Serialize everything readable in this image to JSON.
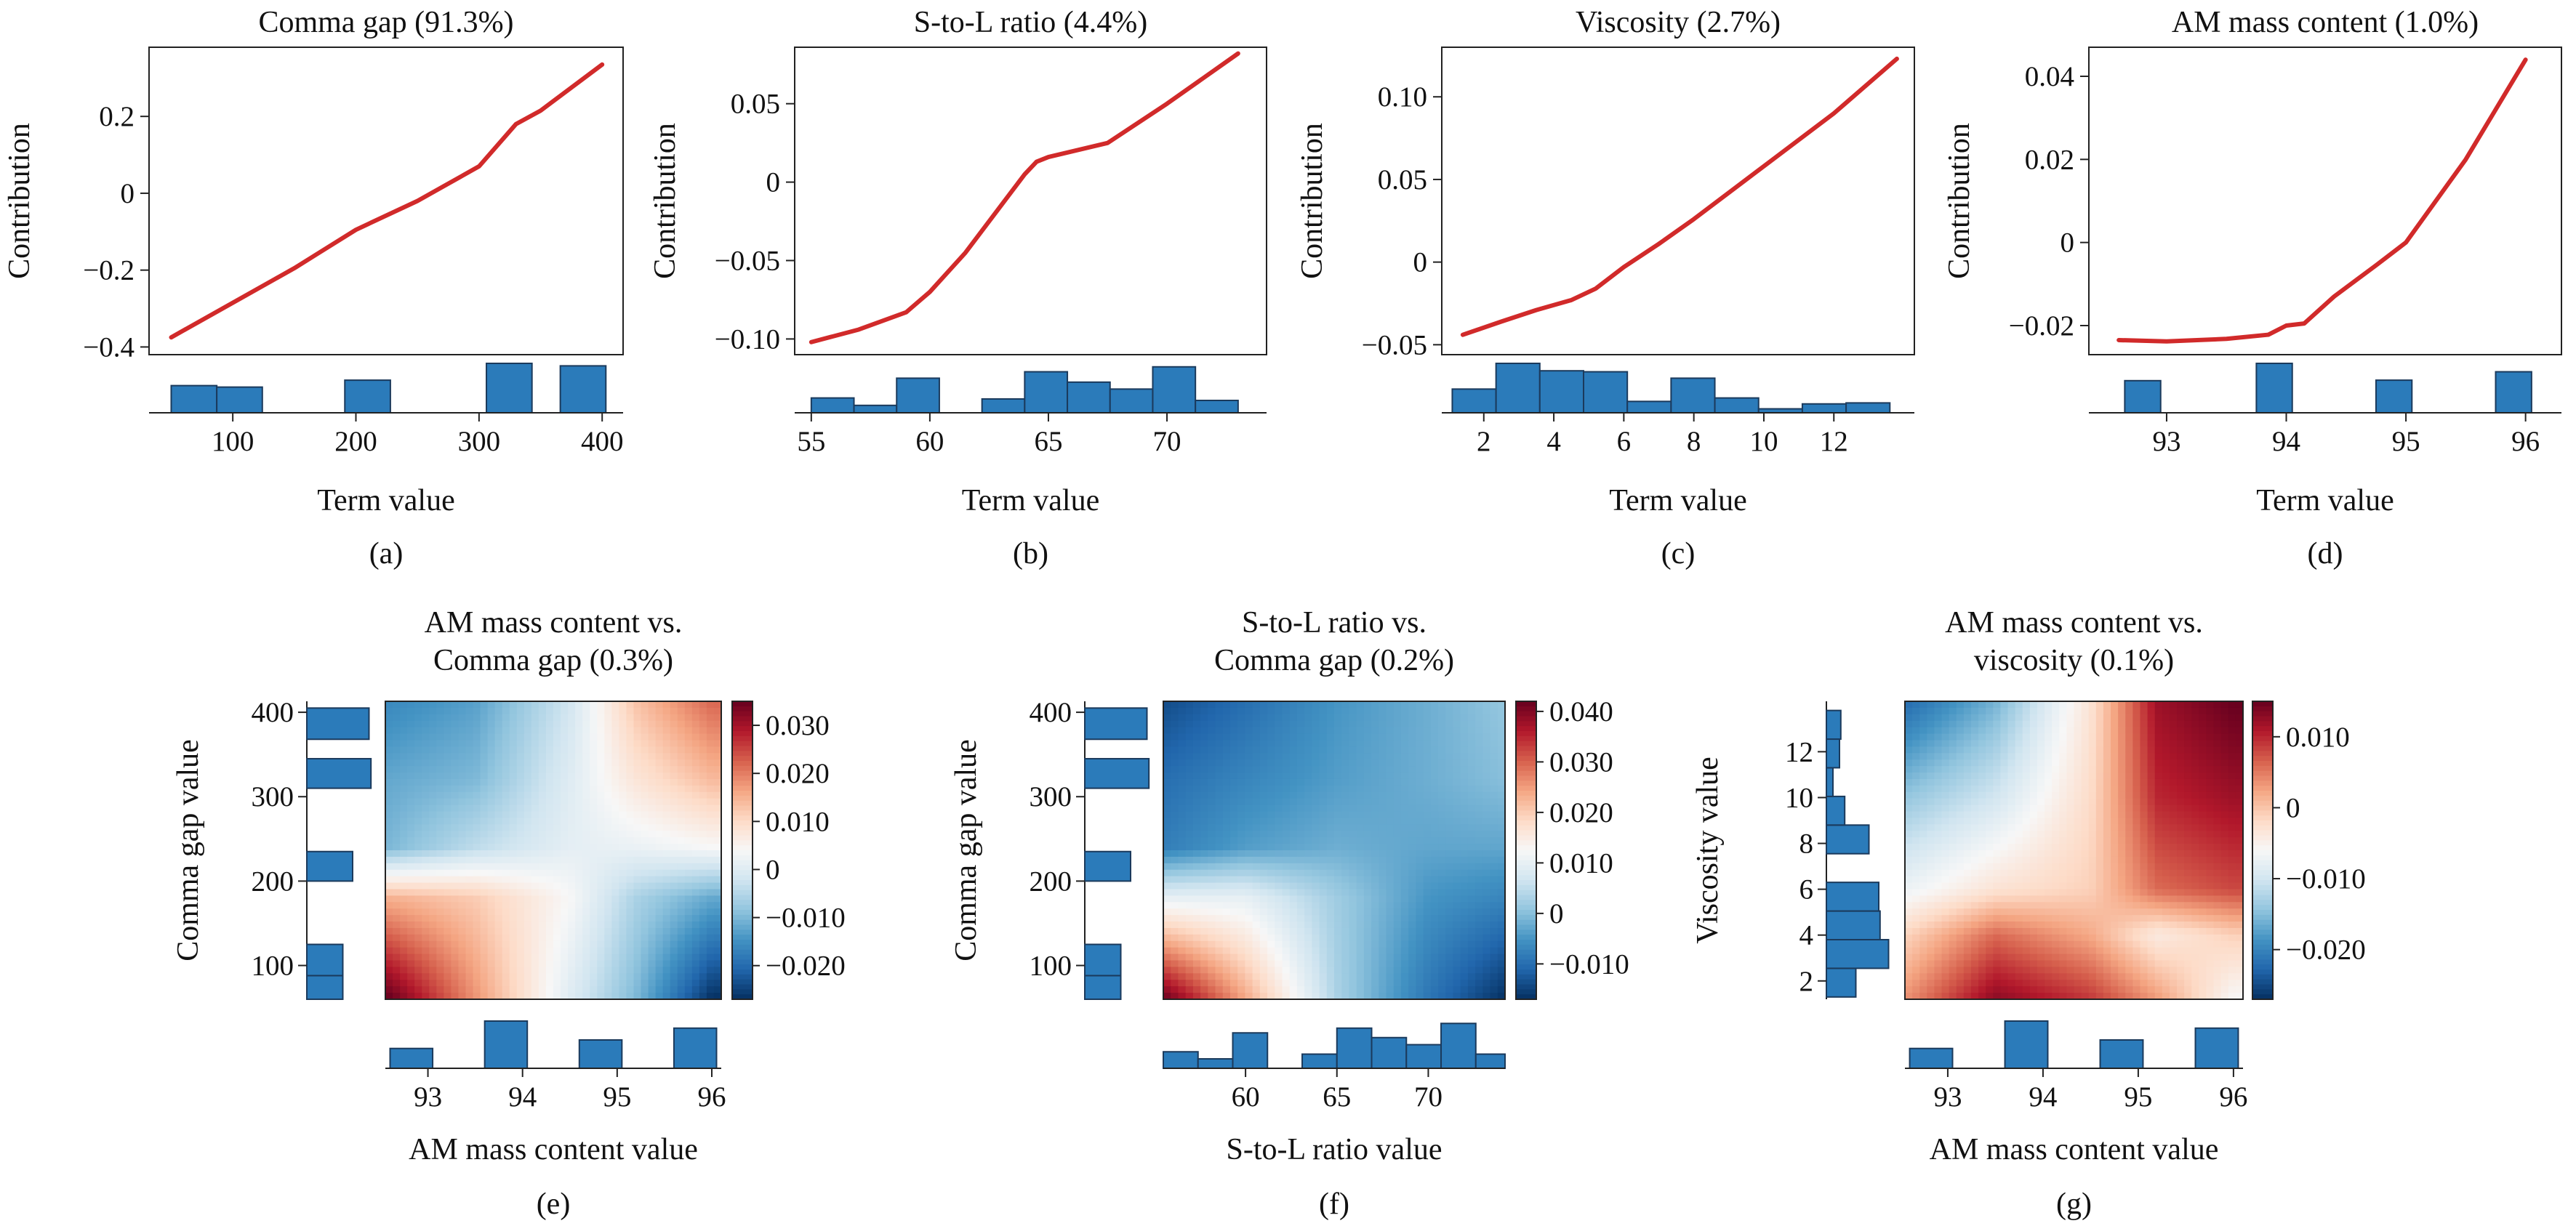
{
  "colors": {
    "line": "#d12a2a",
    "hist_fill": "#2b7bba",
    "hist_edge": "#1b3a5c",
    "axis": "#222222"
  },
  "colormap": "RdBu_r",
  "chart_data": [
    {
      "id": "a",
      "type": "line",
      "title": "Comma gap (91.3%)",
      "xlabel": "Term value",
      "ylabel": "Contribution",
      "caption": "(a)",
      "xlim": [
        32,
        417
      ],
      "ylim": [
        -0.42,
        0.38
      ],
      "xticks": [
        100,
        200,
        300,
        400
      ],
      "xtick_labels": [
        "100",
        "200",
        "300",
        "400"
      ],
      "yticks": [
        0.2,
        0,
        -0.2,
        -0.4
      ],
      "ytick_labels": [
        "0.2",
        "0",
        "−0.2",
        "−0.4"
      ],
      "x": [
        50,
        100,
        150,
        170,
        200,
        250,
        300,
        330,
        350,
        400
      ],
      "y": [
        -0.375,
        -0.285,
        -0.195,
        -0.155,
        -0.095,
        -0.02,
        0.07,
        0.18,
        0.215,
        0.335
      ],
      "hist": {
        "bins": [
          [
            50,
            87,
            0.55
          ],
          [
            87,
            124,
            0.52
          ],
          [
            191,
            228,
            0.66
          ],
          [
            306,
            343,
            1.0
          ],
          [
            366,
            403,
            0.95
          ]
        ]
      }
    },
    {
      "id": "b",
      "type": "line",
      "title": "S-to-L ratio (4.4%)",
      "xlabel": "Term value",
      "ylabel": "Contribution",
      "caption": "(b)",
      "xlim": [
        54.3,
        74.2
      ],
      "ylim": [
        -0.11,
        0.086
      ],
      "xticks": [
        55,
        60,
        65,
        70
      ],
      "xtick_labels": [
        "55",
        "60",
        "65",
        "70"
      ],
      "yticks": [
        0.05,
        0,
        -0.05,
        -0.1
      ],
      "ytick_labels": [
        "0.05",
        "0",
        "−0.05",
        "−0.10"
      ],
      "x": [
        55,
        57,
        59,
        60,
        61.5,
        63,
        64,
        64.5,
        65,
        67.5,
        70,
        73
      ],
      "y": [
        -0.102,
        -0.094,
        -0.083,
        -0.07,
        -0.045,
        -0.015,
        0.005,
        0.013,
        0.016,
        0.025,
        0.05,
        0.082
      ],
      "hist": {
        "bins": [
          [
            55,
            56.8,
            0.3
          ],
          [
            56.8,
            58.6,
            0.15
          ],
          [
            58.6,
            60.4,
            0.7
          ],
          [
            60.4,
            62.2,
            0
          ],
          [
            62.2,
            64,
            0.28
          ],
          [
            64,
            65.8,
            0.83
          ],
          [
            65.8,
            67.6,
            0.62
          ],
          [
            67.6,
            69.4,
            0.48
          ],
          [
            69.4,
            71.2,
            0.93
          ],
          [
            71.2,
            73,
            0.25
          ]
        ]
      }
    },
    {
      "id": "c",
      "type": "line",
      "title": "Viscosity (2.7%)",
      "xlabel": "Term value",
      "ylabel": "Contribution",
      "caption": "(c)",
      "xlim": [
        0.8,
        14.3
      ],
      "ylim": [
        -0.056,
        0.13
      ],
      "xticks": [
        2,
        4,
        6,
        8,
        10,
        12
      ],
      "xtick_labels": [
        "2",
        "4",
        "6",
        "8",
        "10",
        "12"
      ],
      "yticks": [
        0.1,
        0.05,
        0,
        -0.05
      ],
      "ytick_labels": [
        "0.10",
        "0.05",
        "0",
        "−0.05"
      ],
      "x": [
        1.4,
        2.5,
        3.5,
        4.5,
        5.2,
        6,
        7,
        8,
        10,
        12,
        13.8
      ],
      "y": [
        -0.044,
        -0.036,
        -0.029,
        -0.023,
        -0.016,
        -0.003,
        0.011,
        0.026,
        0.058,
        0.09,
        0.123
      ],
      "hist": {
        "bins": [
          [
            1.1,
            2.35,
            0.48
          ],
          [
            2.35,
            3.6,
            1.0
          ],
          [
            3.6,
            4.85,
            0.85
          ],
          [
            4.85,
            6.1,
            0.83
          ],
          [
            6.1,
            7.35,
            0.23
          ],
          [
            7.35,
            8.6,
            0.7
          ],
          [
            8.6,
            9.85,
            0.3
          ],
          [
            9.85,
            11.1,
            0.08
          ],
          [
            11.1,
            12.35,
            0.18
          ],
          [
            12.35,
            13.6,
            0.2
          ]
        ]
      }
    },
    {
      "id": "d",
      "type": "line",
      "title": "AM mass content (1.0%)",
      "xlabel": "Term value",
      "ylabel": "Contribution",
      "caption": "(d)",
      "xlim": [
        92.35,
        96.3
      ],
      "ylim": [
        -0.027,
        0.047
      ],
      "xticks": [
        93,
        94,
        95,
        96
      ],
      "xtick_labels": [
        "93",
        "94",
        "95",
        "96"
      ],
      "yticks": [
        0.04,
        0.02,
        0,
        -0.02
      ],
      "ytick_labels": [
        "0.04",
        "0.02",
        "0",
        "−0.02"
      ],
      "x": [
        92.6,
        93,
        93.5,
        93.85,
        94,
        94.15,
        94.4,
        94.75,
        95,
        95.5,
        96
      ],
      "y": [
        -0.0235,
        -0.0238,
        -0.0232,
        -0.0222,
        -0.02,
        -0.0195,
        -0.013,
        -0.0055,
        0,
        0.02,
        0.044
      ],
      "hist": {
        "bins": [
          [
            92.65,
            92.95,
            0.65
          ],
          [
            93.75,
            94.05,
            1.0
          ],
          [
            94.75,
            95.05,
            0.66
          ],
          [
            95.75,
            96.05,
            0.83
          ]
        ]
      }
    },
    {
      "id": "e",
      "type": "heatmap",
      "title": "AM mass content vs.\nComma gap (0.3%)",
      "xlabel": "AM mass content value",
      "ylabel": "Comma gap value",
      "caption": "(e)",
      "xlim": [
        92.55,
        96.1
      ],
      "ylim": [
        60,
        413
      ],
      "xticks": [
        93,
        94,
        95,
        96
      ],
      "xtick_labels": [
        "93",
        "94",
        "95",
        "96"
      ],
      "yticks": [
        100,
        200,
        300,
        400
      ],
      "ytick_labels": [
        "100",
        "200",
        "300",
        "400"
      ],
      "colorbar": {
        "min": -0.027,
        "max": 0.035,
        "ticks": [
          0.03,
          0.02,
          0.01,
          0,
          -0.01,
          -0.02
        ],
        "labels": [
          "0.030",
          "0.020",
          "0.010",
          "0",
          "−0.010",
          "−0.020"
        ]
      },
      "grid_x": [
        92.6,
        93.5,
        94.5,
        95.2,
        96
      ],
      "grid_y": [
        60,
        180,
        240,
        320,
        413
      ],
      "z": [
        [
          0.035,
          0.018,
          0.0,
          -0.01,
          -0.027
        ],
        [
          0.015,
          0.012,
          0.004,
          -0.006,
          -0.012
        ],
        [
          -0.01,
          -0.004,
          0.001,
          0.002,
          0.004
        ],
        [
          -0.012,
          -0.01,
          0.0,
          0.008,
          0.014
        ],
        [
          -0.016,
          -0.013,
          -0.002,
          0.013,
          0.022
        ]
      ],
      "hist_x": {
        "bins": [
          [
            92.6,
            93.05,
            0.42
          ],
          [
            93.6,
            94.05,
            1.0
          ],
          [
            94.6,
            95.05,
            0.6
          ],
          [
            95.6,
            96.05,
            0.85
          ]
        ]
      },
      "hist_y": {
        "bins": [
          [
            60,
            88,
            0.55
          ],
          [
            88,
            125,
            0.55
          ],
          [
            200,
            235,
            0.7
          ],
          [
            310,
            345,
            0.98
          ],
          [
            368,
            405,
            0.95
          ]
        ]
      }
    },
    {
      "id": "f",
      "type": "heatmap",
      "title": "S-to-L ratio vs.\nComma gap (0.2%)",
      "xlabel": "S-to-L ratio value",
      "ylabel": "Comma gap value",
      "caption": "(f)",
      "xlim": [
        55.5,
        74.2
      ],
      "ylim": [
        60,
        413
      ],
      "xticks": [
        60,
        65,
        70
      ],
      "xtick_labels": [
        "60",
        "65",
        "70"
      ],
      "yticks": [
        100,
        200,
        300,
        400
      ],
      "ytick_labels": [
        "100",
        "200",
        "300",
        "400"
      ],
      "colorbar": {
        "min": -0.017,
        "max": 0.042,
        "ticks": [
          0.04,
          0.03,
          0.02,
          0.01,
          0,
          -0.01
        ],
        "labels": [
          "0.040",
          "0.030",
          "0.020",
          "0.010",
          "0",
          "−0.010"
        ]
      },
      "grid_x": [
        55.5,
        60,
        65,
        70,
        74.2
      ],
      "grid_y": [
        60,
        180,
        240,
        320,
        413
      ],
      "z": [
        [
          0.042,
          0.024,
          0.003,
          -0.009,
          -0.017
        ],
        [
          0.01,
          0.01,
          0.002,
          -0.005,
          -0.007
        ],
        [
          -0.008,
          -0.004,
          -0.002,
          -0.003,
          -0.003
        ],
        [
          -0.01,
          -0.007,
          -0.004,
          -0.002,
          0.0
        ],
        [
          -0.014,
          -0.01,
          -0.005,
          -0.002,
          0.001
        ]
      ],
      "hist_x": {
        "bins": [
          [
            55.5,
            57.4,
            0.35
          ],
          [
            57.4,
            59.3,
            0.2
          ],
          [
            59.3,
            61.2,
            0.75
          ],
          [
            61.2,
            63.1,
            0
          ],
          [
            63.1,
            65,
            0.3
          ],
          [
            65,
            66.9,
            0.85
          ],
          [
            66.9,
            68.8,
            0.65
          ],
          [
            68.8,
            70.7,
            0.5
          ],
          [
            70.7,
            72.6,
            0.95
          ],
          [
            72.6,
            74.2,
            0.3
          ]
        ]
      },
      "hist_y": {
        "bins": [
          [
            60,
            88,
            0.55
          ],
          [
            88,
            125,
            0.55
          ],
          [
            200,
            235,
            0.7
          ],
          [
            310,
            345,
            0.98
          ],
          [
            368,
            405,
            0.95
          ]
        ]
      }
    },
    {
      "id": "g",
      "type": "heatmap",
      "title": "AM mass content vs.\nviscosity (0.1%)",
      "xlabel": "AM mass content value",
      "ylabel": "Viscosity value",
      "caption": "(g)",
      "xlim": [
        92.55,
        96.1
      ],
      "ylim": [
        1.2,
        14.2
      ],
      "xticks": [
        93,
        94,
        95,
        96
      ],
      "xtick_labels": [
        "93",
        "94",
        "95",
        "96"
      ],
      "yticks": [
        2,
        4,
        6,
        8,
        10,
        12
      ],
      "ytick_labels": [
        "2",
        "4",
        "6",
        "8",
        "10",
        "12"
      ],
      "colorbar": {
        "min": -0.027,
        "max": 0.015,
        "ticks": [
          0.01,
          0,
          -0.01,
          -0.02
        ],
        "labels": [
          "0.010",
          "0",
          "−0.010",
          "−0.020"
        ]
      },
      "grid_x": [
        92.6,
        93.5,
        94.5,
        95.2,
        96
      ],
      "grid_y": [
        1.2,
        4,
        6,
        10,
        14.2
      ],
      "z": [
        [
          0.004,
          0.013,
          0.009,
          0.003,
          -0.006
        ],
        [
          -0.001,
          0.006,
          0.002,
          -0.004,
          -0.001
        ],
        [
          -0.007,
          -0.003,
          -0.001,
          0.006,
          0.008
        ],
        [
          -0.014,
          -0.01,
          -0.002,
          0.01,
          0.012
        ],
        [
          -0.022,
          -0.016,
          -0.003,
          0.012,
          0.015
        ]
      ],
      "hist_x": {
        "bins": [
          [
            92.6,
            93.05,
            0.42
          ],
          [
            93.6,
            94.05,
            1.0
          ],
          [
            94.6,
            95.05,
            0.6
          ],
          [
            95.6,
            96.05,
            0.85
          ]
        ]
      },
      "hist_y": {
        "bins": [
          [
            1.3,
            2.55,
            0.45
          ],
          [
            2.55,
            3.8,
            0.95
          ],
          [
            3.8,
            5.05,
            0.82
          ],
          [
            5.05,
            6.3,
            0.8
          ],
          [
            6.3,
            7.55,
            0.0
          ],
          [
            7.55,
            8.8,
            0.65
          ],
          [
            8.8,
            10.05,
            0.28
          ],
          [
            10.05,
            11.3,
            0.1
          ],
          [
            11.3,
            12.55,
            0.2
          ],
          [
            12.55,
            13.8,
            0.22
          ]
        ]
      }
    }
  ]
}
